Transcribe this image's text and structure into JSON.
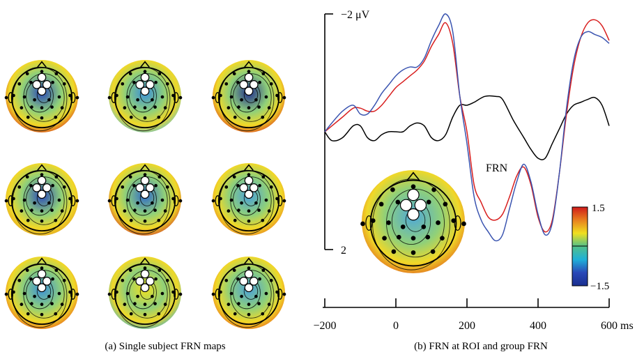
{
  "panel_a": {
    "caption": "(a)  Single subject FRN maps",
    "maps": [
      {
        "hi": "#d63a1d",
        "lo": "#2a49b8",
        "roi": "#ffffff"
      },
      {
        "hi": "#5fc0d0",
        "lo": "#3a8fd8",
        "roi": "#ffffff"
      },
      {
        "hi": "#d63a1d",
        "lo": "#22308f",
        "roi": "#ffffff"
      },
      {
        "hi": "#e2a020",
        "lo": "#2a49b8",
        "roi": "#ffffff"
      },
      {
        "hi": "#c83a2a",
        "lo": "#2f6ac8",
        "roi": "#ffffff"
      },
      {
        "hi": "#e8801f",
        "lo": "#4aa0d8",
        "roi": "#ffffff"
      },
      {
        "hi": "#e55a1c",
        "lo": "#3a8fd8",
        "roi": "#ffffff"
      },
      {
        "hi": "#3fb0c8",
        "lo": "#f0e020",
        "roi": "#ffffff"
      },
      {
        "hi": "#e8681c",
        "lo": "#4aa0d8",
        "roi": "#ffffff"
      }
    ]
  },
  "chart_data": {
    "type": "line",
    "caption": "(b)  FRN at ROI and group FRN",
    "y_top_label": "−2 μV",
    "y_bottom_label": "2",
    "ylim": [
      2,
      -2
    ],
    "xlim": [
      -200,
      600
    ],
    "x_ticks": [
      -200,
      0,
      200,
      400,
      600
    ],
    "x_tick_labels": [
      "−200",
      "0",
      "200",
      "400",
      "600 ms"
    ],
    "annotation": "FRN",
    "series": [
      {
        "color": "#000000",
        "x": [
          -200,
          -180,
          -150,
          -120,
          -100,
          -80,
          -60,
          -40,
          -20,
          0,
          20,
          40,
          60,
          80,
          100,
          120,
          140,
          160,
          180,
          200,
          220,
          250,
          280,
          300,
          330,
          360,
          380,
          400,
          420,
          440,
          460,
          480,
          500,
          520,
          540,
          560,
          580,
          600
        ],
        "y": [
          0,
          0.15,
          0.1,
          -0.1,
          -0.1,
          0.1,
          0.15,
          0.05,
          0,
          0,
          0.0,
          -0.1,
          -0.15,
          -0.1,
          0.1,
          0.15,
          0.05,
          -0.25,
          -0.45,
          -0.45,
          -0.5,
          -0.6,
          -0.6,
          -0.55,
          -0.2,
          0.1,
          0.3,
          0.45,
          0.45,
          0.2,
          -0.05,
          -0.3,
          -0.45,
          -0.5,
          -0.55,
          -0.58,
          -0.45,
          -0.1
        ]
      },
      {
        "color": "#d81e1e",
        "x": [
          -200,
          -180,
          -150,
          -120,
          -100,
          -80,
          -60,
          -40,
          -20,
          0,
          20,
          40,
          60,
          80,
          100,
          120,
          140,
          160,
          180,
          200,
          220,
          240,
          260,
          280,
          300,
          320,
          340,
          360,
          380,
          400,
          420,
          440,
          460,
          480,
          500,
          520,
          540,
          560,
          580,
          600
        ],
        "y": [
          0,
          -0.1,
          -0.25,
          -0.4,
          -0.4,
          -0.35,
          -0.35,
          -0.45,
          -0.6,
          -0.75,
          -0.85,
          -0.95,
          -1.05,
          -1.2,
          -1.45,
          -1.65,
          -1.85,
          -1.5,
          -0.6,
          0.0,
          0.9,
          1.2,
          1.45,
          1.5,
          1.4,
          1.1,
          0.75,
          0.6,
          0.9,
          1.45,
          1.7,
          1.5,
          0.7,
          -0.3,
          -1.1,
          -1.6,
          -1.85,
          -1.9,
          -1.8,
          -1.55
        ]
      },
      {
        "color": "#3a54b0",
        "x": [
          -200,
          -180,
          -150,
          -120,
          -100,
          -80,
          -60,
          -40,
          -20,
          0,
          20,
          40,
          60,
          80,
          100,
          120,
          140,
          160,
          180,
          200,
          220,
          240,
          260,
          280,
          300,
          320,
          340,
          360,
          380,
          400,
          420,
          440,
          460,
          480,
          500,
          520,
          540,
          560,
          580,
          600
        ],
        "y": [
          0,
          -0.15,
          -0.35,
          -0.45,
          -0.3,
          -0.3,
          -0.45,
          -0.65,
          -0.8,
          -0.95,
          -1.05,
          -1.1,
          -1.1,
          -1.25,
          -1.55,
          -1.8,
          -2.0,
          -1.7,
          -0.6,
          0.2,
          1.1,
          1.5,
          1.7,
          1.85,
          1.75,
          1.3,
          0.85,
          0.55,
          0.85,
          1.4,
          1.75,
          1.55,
          0.7,
          -0.4,
          -1.2,
          -1.6,
          -1.7,
          -1.65,
          -1.6,
          -1.5
        ]
      }
    ]
  },
  "group_map": {
    "hi": "#e0621e",
    "lo": "#4fa8d8",
    "roi": "#ffffff"
  },
  "colorbar": {
    "max_label": "1.5",
    "min_label": "−1.5",
    "stops": [
      "#d01b1b",
      "#e8801f",
      "#f0e020",
      "#52c08a",
      "#1fb0d8",
      "#2a49b8",
      "#1a2f8f"
    ]
  }
}
